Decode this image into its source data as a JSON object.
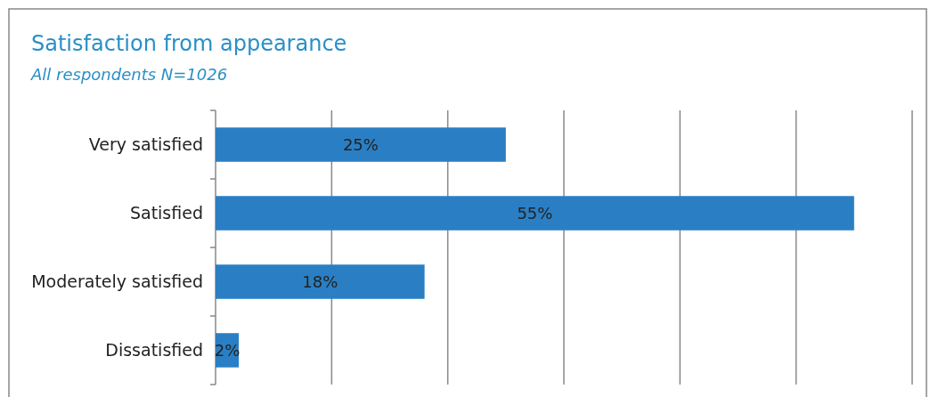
{
  "chart_data": {
    "type": "bar",
    "orientation": "horizontal",
    "title": "Satisfaction from appearance",
    "subtitle": "All respondents N=1026",
    "categories": [
      "Very satisfied",
      "Satisfied",
      "Moderately satisfied",
      "Dissatisfied"
    ],
    "values": [
      25,
      55,
      18,
      2
    ],
    "color": "#2a7fc4",
    "value_labels": [
      "25%",
      "55%",
      "18%",
      "2%"
    ],
    "xlim": [
      0,
      60
    ],
    "xticks": [
      {
        "value": 10,
        "label": null
      },
      {
        "value": 20,
        "label": null
      },
      {
        "value": 30,
        "label": null
      },
      {
        "value": 40,
        "label": null
      },
      {
        "value": 50,
        "label": null
      },
      {
        "value": 60,
        "label": null
      }
    ],
    "grid": "x",
    "tick_labels": "y"
  }
}
